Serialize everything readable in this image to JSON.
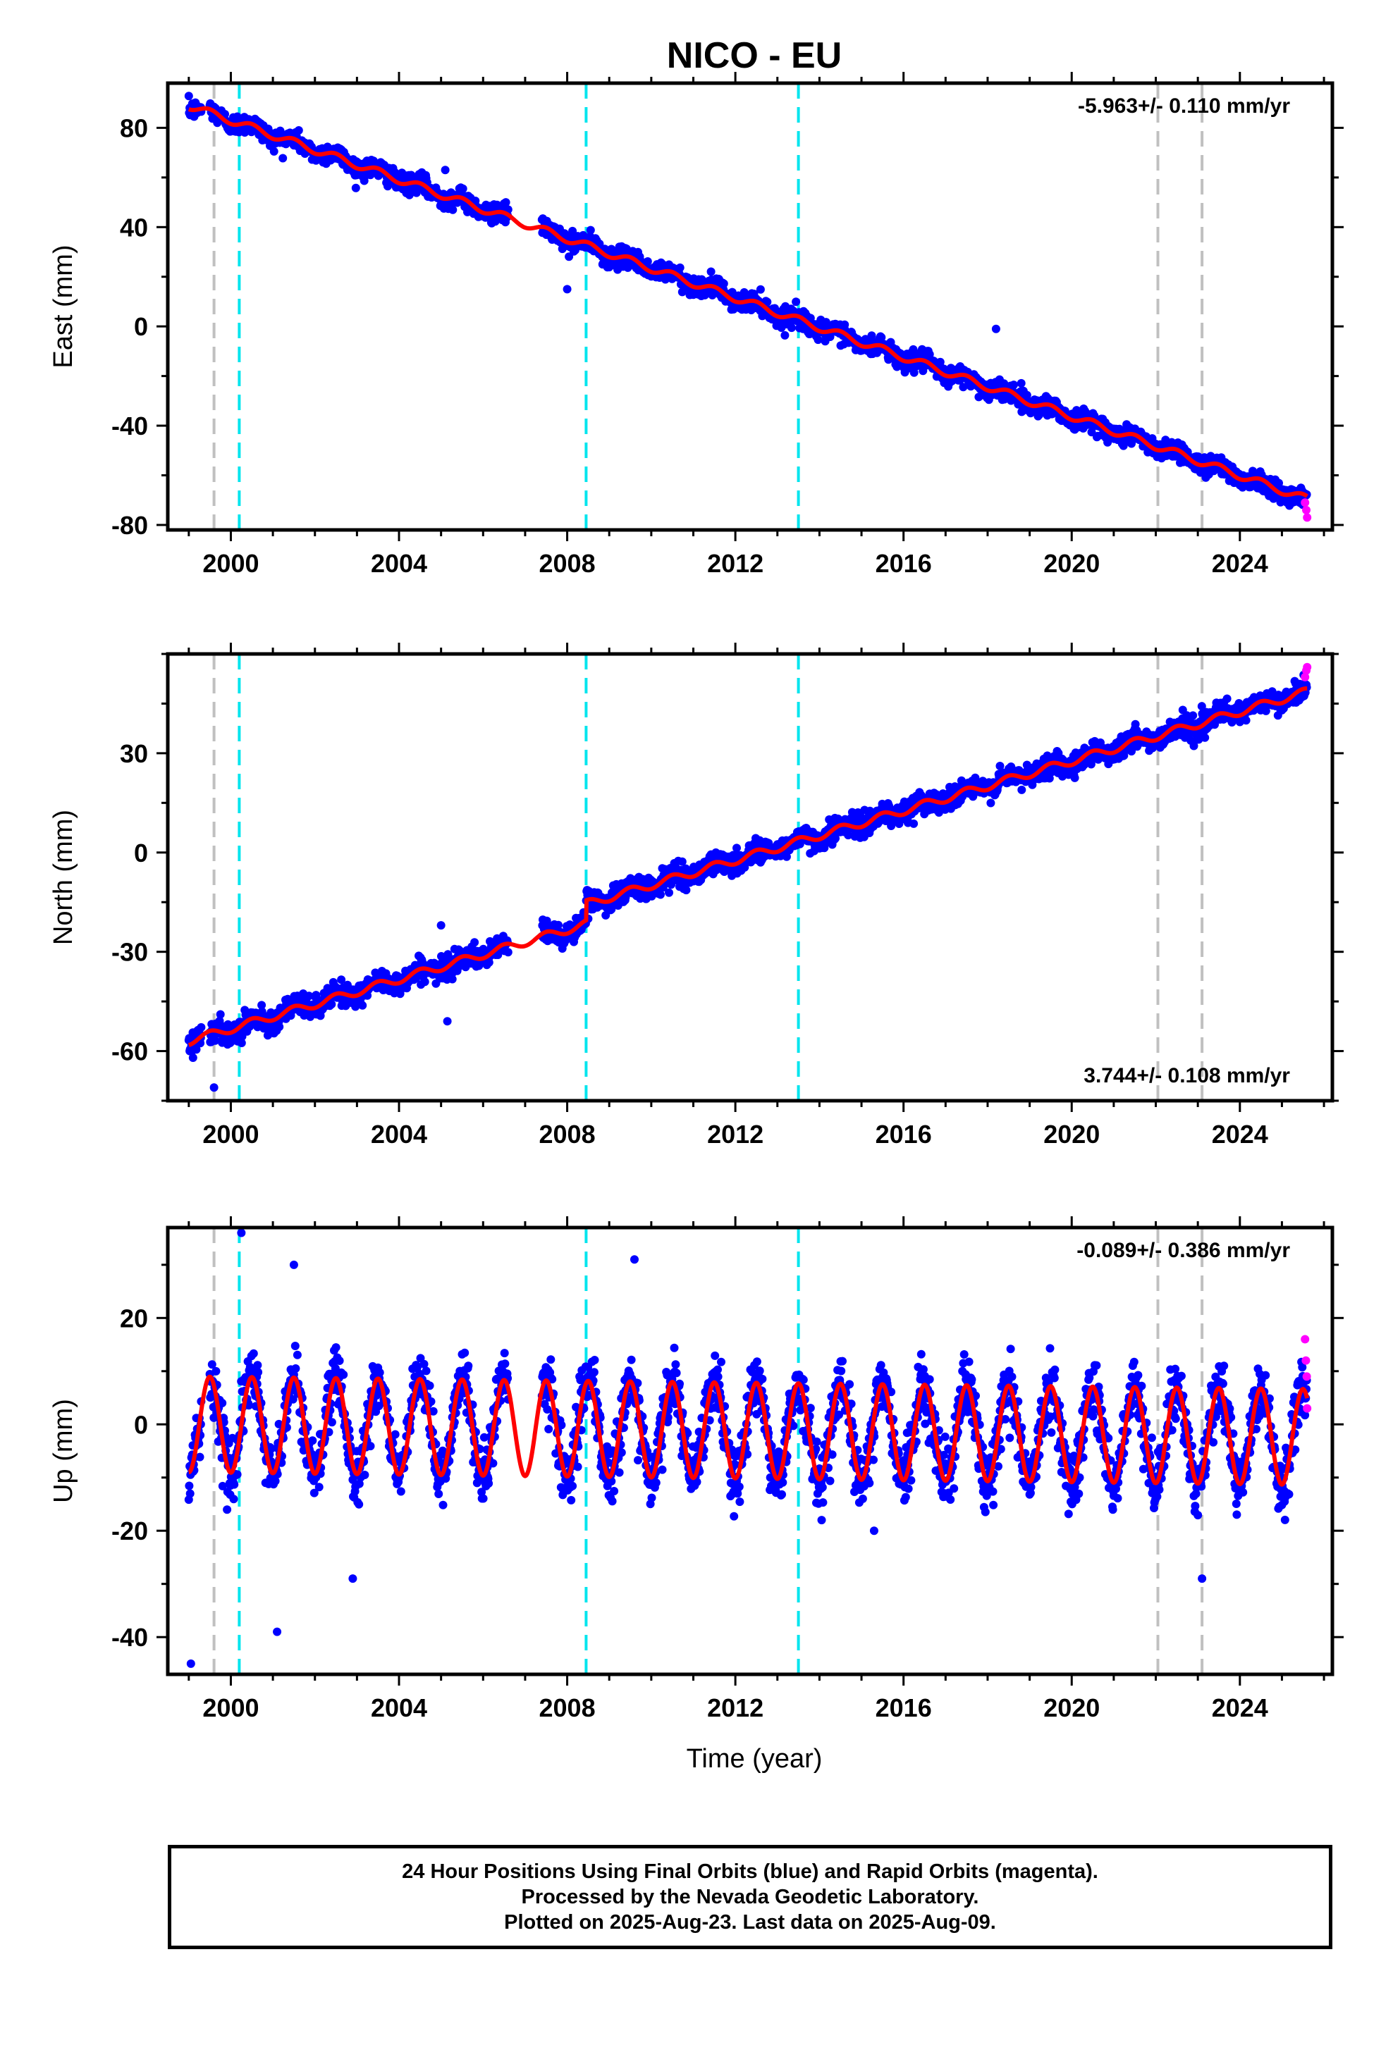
{
  "title": "NICO - EU",
  "colors": {
    "final_orbits": "#0000ff",
    "rapid_orbits": "#ff00ff",
    "model": "#ff0000",
    "equipment_change": "#00e5ee",
    "earthquake": "#c0c0c0"
  },
  "xlabel": "Time (year)",
  "x_ticks": [
    2000,
    2004,
    2008,
    2012,
    2016,
    2020,
    2024
  ],
  "x_range": [
    1998.5,
    2026.2
  ],
  "vertical_lines": {
    "gray": [
      1999.6,
      2022.05,
      2023.1
    ],
    "cyan": [
      2000.2,
      2008.45,
      2013.5
    ]
  },
  "chart_data": [
    {
      "type": "scatter",
      "ylabel": "East (mm)",
      "rate_text": "-5.963+/- 0.110 mm/yr",
      "rate_position": "top-right",
      "ylim": [
        -82,
        98
      ],
      "y_ticks": [
        80,
        40,
        0,
        -40,
        -80
      ],
      "model": {
        "start": 1999.0,
        "end": 2025.6,
        "value_at_start": 89,
        "slope": -5.963,
        "seasonal_amplitude": 1.5
      },
      "segments": [
        [
          1999.0,
          1999.3
        ],
        [
          1999.5,
          2006.6
        ],
        [
          2007.4,
          2025.6
        ]
      ],
      "scatter_noise": 3.5,
      "outliers": [
        {
          "x": 2005.1,
          "y": 63
        },
        {
          "x": 2008.0,
          "y": 15
        },
        {
          "x": 2018.2,
          "y": -1
        }
      ],
      "rapid_points": [
        {
          "x": 2025.55,
          "y": -71
        },
        {
          "x": 2025.58,
          "y": -74
        },
        {
          "x": 2025.6,
          "y": -77
        }
      ]
    },
    {
      "type": "scatter",
      "ylabel": "North (mm)",
      "rate_text": "3.744+/- 0.108 mm/yr",
      "rate_position": "bottom-right",
      "ylim": [
        -75,
        60
      ],
      "y_ticks": [
        30,
        0,
        -30,
        -60
      ],
      "model": {
        "start": 1999.0,
        "end": 2025.6,
        "value_at_start": -57,
        "slope": 3.744,
        "seasonal_amplitude": 1.2
      },
      "offsets": [
        {
          "x": 2008.45,
          "dy": 6
        }
      ],
      "segments": [
        [
          1999.0,
          1999.3
        ],
        [
          1999.5,
          2006.6
        ],
        [
          2007.4,
          2025.6
        ]
      ],
      "scatter_noise": 3.0,
      "outliers": [
        {
          "x": 1999.1,
          "y": -62
        },
        {
          "x": 1999.6,
          "y": -71
        },
        {
          "x": 2005.0,
          "y": -22
        },
        {
          "x": 2005.15,
          "y": -51
        },
        {
          "x": 2008.5,
          "y": -20
        }
      ],
      "rapid_points": [
        {
          "x": 2025.55,
          "y": 53
        },
        {
          "x": 2025.58,
          "y": 55
        },
        {
          "x": 2025.6,
          "y": 56
        }
      ]
    },
    {
      "type": "scatter",
      "ylabel": "Up (mm)",
      "rate_text": "-0.089+/- 0.386 mm/yr",
      "rate_position": "top-right",
      "ylim": [
        -47,
        37
      ],
      "y_ticks": [
        20,
        0,
        -20,
        -40
      ],
      "model": {
        "start": 1999.0,
        "end": 2025.6,
        "value_at_start": 0,
        "slope": -0.089,
        "seasonal_amplitude": 9
      },
      "segments": [
        [
          1999.0,
          1999.3
        ],
        [
          1999.5,
          2006.6
        ],
        [
          2007.4,
          2025.6
        ]
      ],
      "scatter_noise": 5.0,
      "outliers": [
        {
          "x": 1999.05,
          "y": -45
        },
        {
          "x": 2000.25,
          "y": 36
        },
        {
          "x": 2001.5,
          "y": 30
        },
        {
          "x": 2001.1,
          "y": -39
        },
        {
          "x": 2002.9,
          "y": -29
        },
        {
          "x": 2009.6,
          "y": 31
        },
        {
          "x": 2015.3,
          "y": -20
        },
        {
          "x": 2023.1,
          "y": -29
        }
      ],
      "rapid_points": [
        {
          "x": 2025.55,
          "y": 16
        },
        {
          "x": 2025.57,
          "y": 12
        },
        {
          "x": 2025.59,
          "y": 9
        },
        {
          "x": 2025.6,
          "y": 3
        }
      ]
    }
  ],
  "footer": {
    "line1": "24 Hour Positions Using Final Orbits (blue) and Rapid Orbits (magenta).",
    "line2": "Processed by the Nevada Geodetic Laboratory.",
    "line3": "Plotted on 2025-Aug-23. Last data on 2025-Aug-09."
  }
}
